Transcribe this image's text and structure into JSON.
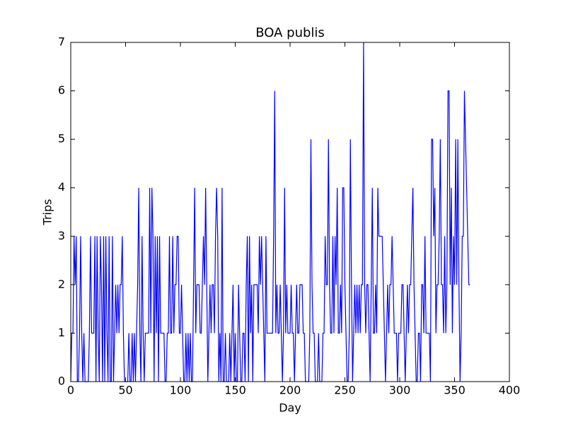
{
  "chart_data": {
    "type": "line",
    "title": "BOA publis",
    "x_label": "Day",
    "y_label": "Trips",
    "color": "#0000ff",
    "x": [
      0,
      1,
      2,
      3,
      4,
      5,
      6,
      7,
      8,
      9,
      10,
      11,
      12,
      13,
      14,
      15,
      16,
      17,
      18,
      19,
      20,
      21,
      22,
      23,
      24,
      25,
      26,
      27,
      28,
      29,
      30,
      31,
      32,
      33,
      34,
      35,
      36,
      37,
      38,
      39,
      40,
      41,
      42,
      43,
      44,
      45,
      46,
      47,
      48,
      49,
      50,
      51,
      52,
      53,
      54,
      55,
      56,
      57,
      58,
      59,
      60,
      61,
      62,
      63,
      64,
      65,
      66,
      67,
      68,
      69,
      70,
      71,
      72,
      73,
      74,
      75,
      76,
      77,
      78,
      79,
      80,
      81,
      82,
      83,
      84,
      85,
      86,
      87,
      88,
      89,
      90,
      91,
      92,
      93,
      94,
      95,
      96,
      97,
      98,
      99,
      100,
      101,
      102,
      103,
      104,
      105,
      106,
      107,
      108,
      109,
      110,
      111,
      112,
      113,
      114,
      115,
      116,
      117,
      118,
      119,
      120,
      121,
      122,
      123,
      124,
      125,
      126,
      127,
      128,
      129,
      130,
      131,
      132,
      133,
      134,
      135,
      136,
      137,
      138,
      139,
      140,
      141,
      142,
      143,
      144,
      145,
      146,
      147,
      148,
      149,
      150,
      151,
      152,
      153,
      154,
      155,
      156,
      157,
      158,
      159,
      160,
      161,
      162,
      163,
      164,
      165,
      166,
      167,
      168,
      169,
      170,
      171,
      172,
      173,
      174,
      175,
      176,
      177,
      178,
      179,
      180,
      181,
      182,
      183,
      184,
      185,
      186,
      187,
      188,
      189,
      190,
      191,
      192,
      193,
      194,
      195,
      196,
      197,
      198,
      199,
      200,
      201,
      202,
      203,
      204,
      205,
      206,
      207,
      208,
      209,
      210,
      211,
      212,
      213,
      214,
      215,
      216,
      217,
      218,
      219,
      220,
      221,
      222,
      223,
      224,
      225,
      226,
      227,
      228,
      229,
      230,
      231,
      232,
      233,
      234,
      235,
      236,
      237,
      238,
      239,
      240,
      241,
      242,
      243,
      244,
      245,
      246,
      247,
      248,
      249,
      250,
      251,
      252,
      253,
      254,
      255,
      256,
      257,
      258,
      259,
      260,
      261,
      262,
      263,
      264,
      265,
      266,
      267,
      268,
      269,
      270,
      271,
      272,
      273,
      274,
      275,
      276,
      277,
      278,
      279,
      280,
      281,
      282,
      283,
      284,
      285,
      286,
      287,
      288,
      289,
      290,
      291,
      292,
      293,
      294,
      295,
      296,
      297,
      298,
      299,
      300,
      301,
      302,
      303,
      304,
      305,
      306,
      307,
      308,
      309,
      310,
      311,
      312,
      313,
      314,
      315,
      316,
      317,
      318,
      319,
      320,
      321,
      322,
      323,
      324,
      325,
      326,
      327,
      328,
      329,
      330,
      331,
      332,
      333,
      334,
      335,
      336,
      337,
      338,
      339,
      340,
      341,
      342,
      343,
      344,
      345,
      346,
      347,
      348,
      349,
      350,
      351,
      352,
      353,
      354,
      355,
      356,
      357,
      358,
      359,
      360,
      361,
      362,
      363,
      364
    ],
    "values": [
      0,
      1,
      1,
      3,
      2,
      3,
      0,
      0,
      1,
      3,
      1,
      0,
      1,
      0,
      0,
      0,
      0,
      1,
      3,
      1,
      1,
      1,
      3,
      0,
      3,
      1,
      0,
      3,
      2,
      0,
      3,
      0,
      3,
      1,
      0,
      3,
      0,
      0,
      3,
      0,
      1,
      2,
      1,
      2,
      1,
      2,
      2,
      3,
      1,
      0,
      0,
      0,
      0,
      1,
      0,
      0,
      1,
      0,
      1,
      0,
      1,
      2,
      4,
      1,
      0,
      3,
      1,
      0,
      1,
      1,
      1,
      1,
      4,
      1,
      4,
      3,
      0,
      3,
      1,
      3,
      0,
      3,
      1,
      1,
      1,
      1,
      0,
      0,
      1,
      1,
      3,
      1,
      1,
      3,
      1,
      2,
      2,
      3,
      3,
      1,
      1,
      2,
      1,
      0,
      0,
      1,
      0,
      1,
      0,
      1,
      0,
      0,
      2,
      4,
      1,
      2,
      2,
      2,
      1,
      1,
      2,
      3,
      2,
      4,
      2,
      0,
      1,
      2,
      1,
      2,
      2,
      1,
      3,
      4,
      3,
      0,
      1,
      0,
      4,
      0,
      0,
      1,
      0,
      0,
      0,
      1,
      0,
      1,
      2,
      0,
      1,
      0,
      0,
      2,
      1,
      0,
      0,
      1,
      1,
      0,
      2,
      3,
      0,
      3,
      1,
      2,
      0,
      2,
      2,
      2,
      2,
      1,
      3,
      2,
      3,
      2,
      1,
      0,
      3,
      1,
      1,
      1,
      1,
      1,
      1,
      3,
      6,
      1,
      2,
      1,
      1,
      2,
      1,
      0,
      1,
      4,
      1,
      2,
      1,
      1,
      1,
      2,
      1,
      1,
      0,
      1,
      2,
      1,
      1,
      2,
      2,
      2,
      1,
      1,
      0,
      0,
      0,
      0,
      1,
      5,
      2,
      1,
      1,
      0,
      0,
      0,
      1,
      0,
      0,
      0,
      1,
      1,
      3,
      2,
      2,
      5,
      2,
      1,
      1,
      3,
      1,
      3,
      2,
      4,
      1,
      1,
      2,
      1,
      4,
      4,
      2,
      1,
      0,
      0,
      1,
      5,
      2,
      0,
      1,
      2,
      1,
      2,
      1,
      2,
      1,
      2,
      2,
      7,
      2,
      1,
      2,
      2,
      1,
      0,
      2,
      4,
      1,
      1,
      2,
      1,
      4,
      3,
      3,
      3,
      3,
      2,
      1,
      0,
      1,
      2,
      1,
      2,
      2,
      3,
      2,
      1,
      1,
      1,
      0,
      1,
      1,
      1,
      2,
      2,
      1,
      0,
      1,
      2,
      1,
      2,
      2,
      3,
      4,
      2,
      1,
      0,
      0,
      1,
      1,
      0,
      2,
      2,
      1,
      3,
      1,
      1,
      1,
      1,
      0,
      5,
      5,
      3,
      4,
      1,
      2,
      2,
      3,
      5,
      2,
      2,
      1,
      3,
      1,
      2,
      6,
      6,
      2,
      4,
      1,
      3,
      2,
      5,
      2,
      5,
      2,
      0,
      1,
      3,
      3,
      6,
      5,
      4,
      3,
      2,
      2
    ],
    "xlim": [
      0,
      400
    ],
    "xticks": [
      0,
      50,
      100,
      150,
      200,
      250,
      300,
      350,
      400
    ],
    "ylim": [
      0,
      7
    ],
    "yticks": [
      0,
      1,
      2,
      3,
      4,
      5,
      6,
      7
    ]
  }
}
